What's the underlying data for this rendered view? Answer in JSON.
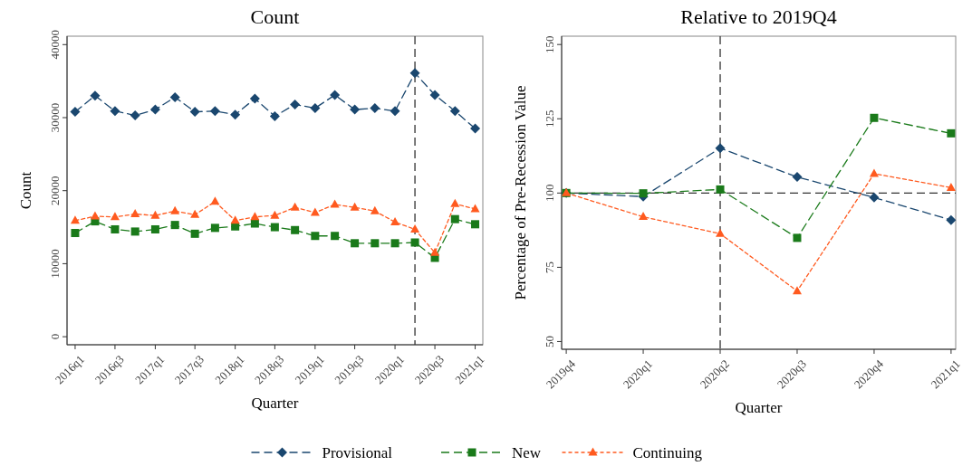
{
  "chart_data": [
    {
      "type": "line",
      "title": "Count",
      "xlabel": "Quarter",
      "ylabel": "Count",
      "x": [
        "2016-01",
        "2016-04",
        "2016-07",
        "2016-10",
        "2017-01",
        "2017-04",
        "2017-07",
        "2017-10",
        "2018-01",
        "2018-04",
        "2018-07",
        "2018-10",
        "2019-01",
        "2019-04",
        "2019-07",
        "2019-10",
        "2020-01",
        "2020-04",
        "2020-07",
        "2020-10",
        "2021-01"
      ],
      "xlim": [
        "2015-11-25",
        "2021-02-05"
      ],
      "xticks": [
        {
          "value": "2016-01",
          "label": "2016q1"
        },
        {
          "value": "2016-07",
          "label": "2016q3"
        },
        {
          "value": "2017-01",
          "label": "2017q1"
        },
        {
          "value": "2017-07",
          "label": "2017q3"
        },
        {
          "value": "2018-01",
          "label": "2018q1"
        },
        {
          "value": "2018-07",
          "label": "2018q3"
        },
        {
          "value": "2019-01",
          "label": "2019q1"
        },
        {
          "value": "2019-07",
          "label": "2019q3"
        },
        {
          "value": "2020-01",
          "label": "2020q1"
        },
        {
          "value": "2020-07",
          "label": "2020q3"
        },
        {
          "value": "2021-01",
          "label": "2021q1"
        }
      ],
      "ylim": [
        -1100,
        41150
      ],
      "yticks": [
        0,
        10000,
        20000,
        30000,
        40000
      ],
      "grid": false,
      "legend": "bottom",
      "ref_lines": [
        {
          "axis": "x",
          "value": "2020-04",
          "color": "#333333",
          "line_style": "dashed"
        }
      ],
      "series": [
        {
          "name": "Provisional",
          "color": "#1a476f",
          "marker": "diamond",
          "line_style": "dashed",
          "values": [
            30800,
            33000,
            30900,
            30300,
            31100,
            32800,
            30800,
            30900,
            30400,
            32600,
            30200,
            31800,
            31300,
            33100,
            31100,
            31300,
            30900,
            36100,
            33100,
            30900,
            28500
          ]
        },
        {
          "name": "New",
          "color": "#1a7a1a",
          "marker": "square",
          "line_style": "dashed",
          "values": [
            14200,
            15800,
            14700,
            14400,
            14700,
            15300,
            14100,
            14900,
            15100,
            15500,
            15000,
            14600,
            13800,
            13800,
            12800,
            12800,
            12800,
            12900,
            10800,
            16100,
            15400
          ]
        },
        {
          "name": "Continuing",
          "color": "#ff5a1f",
          "marker": "triangle",
          "line_style": "dotted",
          "values": [
            15900,
            16500,
            16400,
            16800,
            16600,
            17200,
            16700,
            18500,
            15900,
            16400,
            16600,
            17700,
            17000,
            18100,
            17700,
            17200,
            15700,
            14700,
            11500,
            18200,
            17500
          ]
        }
      ]
    },
    {
      "type": "line",
      "title": "Relative to 2019Q4",
      "xlabel": "Quarter",
      "ylabel": "Percentage of Pre-Recession Value",
      "categories": [
        "2019q4",
        "2020q1",
        "2020q2",
        "2020q3",
        "2020q4",
        "2021q1"
      ],
      "ylim": [
        47.4,
        152.8
      ],
      "yticks": [
        50,
        75,
        100,
        125,
        150
      ],
      "grid": false,
      "ref_lines": [
        {
          "axis": "x",
          "value": "2020q2",
          "color": "#333333",
          "line_style": "dashed"
        },
        {
          "axis": "y",
          "value": 100,
          "color": "#333333",
          "line_style": "dashed"
        }
      ],
      "series": [
        {
          "color": "#1a476f",
          "marker": "diamond",
          "line_style": "dashed",
          "values": [
            100,
            98.8,
            115.1,
            105.4,
            98.5,
            90.9
          ]
        },
        {
          "color": "#1a7a1a",
          "marker": "square",
          "line_style": "dashed",
          "values": [
            100,
            99.9,
            101.2,
            84.9,
            125.3,
            120.1
          ]
        },
        {
          "color": "#ff5a1f",
          "marker": "triangle",
          "line_style": "dotted",
          "values": [
            100,
            92,
            86.3,
            67,
            106.5,
            101.8
          ]
        }
      ]
    }
  ]
}
